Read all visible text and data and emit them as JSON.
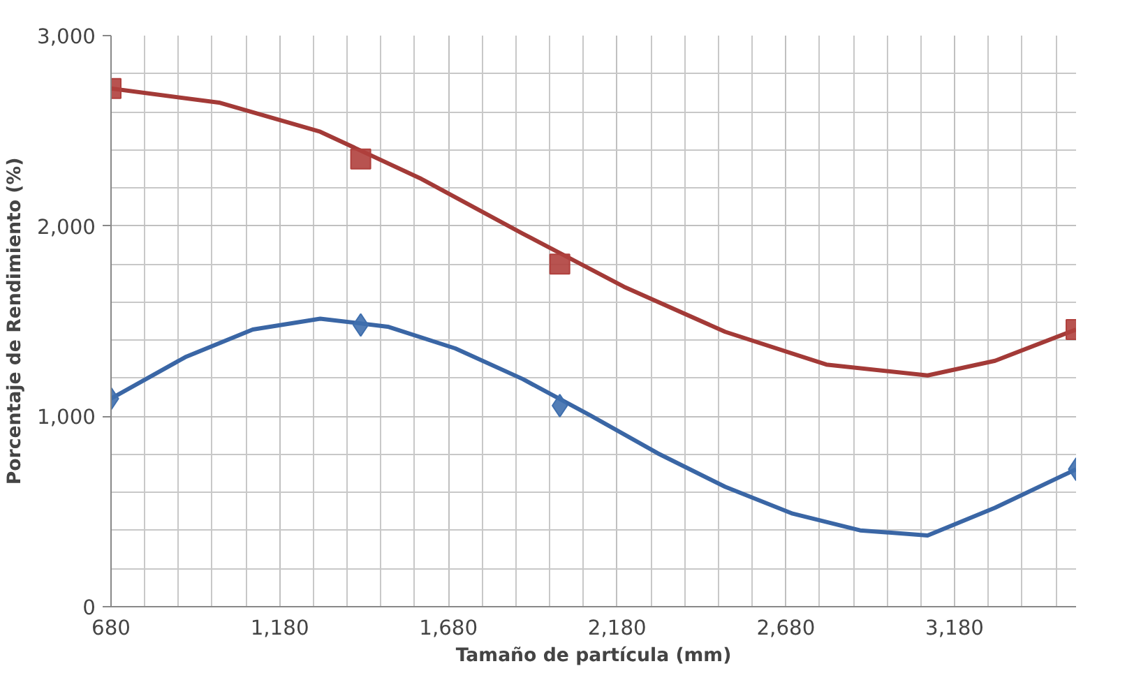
{
  "chart_data": {
    "type": "scatter",
    "xlabel": "Tamaño de partícula (mm)",
    "ylabel": "Porcentaje de Rendimiento (%)",
    "x": [
      680,
      1420,
      2010,
      3540
    ],
    "series": [
      {
        "color": "#b0403d",
        "marker": "square",
        "values": [
          2722,
          2352,
          1800,
          1456
        ]
      },
      {
        "color": "#3f6fae",
        "marker": "diamond",
        "values": [
          1093,
          1480,
          1056,
          722
        ]
      },
      {
        "type": "line",
        "color": "#a33a37",
        "x": [
          680,
          1000,
          1300,
          1600,
          1900,
          2200,
          2500,
          2800,
          3100,
          3300,
          3540
        ],
        "values": [
          2722,
          2648,
          2495,
          2247,
          1960,
          1681,
          1444,
          1272,
          1215,
          1292,
          1456
        ]
      },
      {
        "type": "line",
        "color": "#3a66a5",
        "x": [
          680,
          900,
          1100,
          1300,
          1500,
          1700,
          1900,
          2100,
          2300,
          2500,
          2700,
          2900,
          3100,
          3300,
          3540
        ],
        "values": [
          1093,
          1311,
          1456,
          1513,
          1471,
          1357,
          1196,
          1005,
          806,
          630,
          489,
          401,
          374,
          520,
          722
        ]
      }
    ],
    "xlim": [
      680,
      3540
    ],
    "ylim": [
      0,
      3000
    ],
    "xticks": [
      680,
      {
        "value": 1180,
        "label": "1,180"
      },
      {
        "value": 1680,
        "label": "1,680"
      },
      {
        "value": 2180,
        "label": "2,180"
      },
      {
        "value": 2680,
        "label": "2,680"
      },
      {
        "value": 3180,
        "label": "3,180"
      }
    ],
    "yticks": [
      0,
      {
        "value": 1000,
        "label": "1,000"
      },
      {
        "value": 2000,
        "label": "2,000"
      },
      {
        "value": 3000,
        "label": "3,000"
      }
    ],
    "grid": true
  }
}
